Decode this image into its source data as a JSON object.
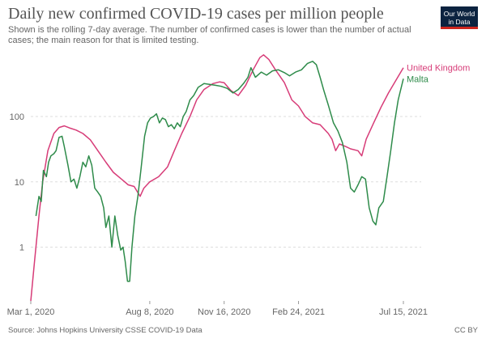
{
  "title": "Daily new confirmed COVID-19 cases per million people",
  "subtitle": "Shown is the rolling 7-day average. The number of confirmed cases is lower than the number of actual cases; the main reason for that is limited testing.",
  "logo": {
    "line1": "Our World",
    "line2": "in Data"
  },
  "footer": {
    "source": "Source: Johns Hopkins University CSSE COVID-19 Data",
    "license": "CC BY"
  },
  "colors": {
    "uk": "#d73c78",
    "malta": "#2e8b4a",
    "grid": "#dddddd",
    "logo_bg": "#0c2340",
    "logo_accent": "#ce261e"
  },
  "chart_data": {
    "type": "line",
    "y_scale": "log",
    "ylim": [
      0.15,
      1100
    ],
    "y_ticks": [
      {
        "value": 1,
        "label": "1"
      },
      {
        "value": 10,
        "label": "10"
      },
      {
        "value": 100,
        "label": "100"
      }
    ],
    "x_ticks": [
      {
        "value": "2020-03-01",
        "label": "Mar 1, 2020"
      },
      {
        "value": "2020-08-08",
        "label": "Aug 8, 2020"
      },
      {
        "value": "2020-11-16",
        "label": "Nov 16, 2020"
      },
      {
        "value": "2021-02-24",
        "label": "Feb 24, 2021"
      },
      {
        "value": "2021-07-15",
        "label": "Jul 15, 2021"
      }
    ],
    "xlim": [
      "2020-03-01",
      "2021-07-15"
    ],
    "series": [
      {
        "name": "United Kingdom",
        "color": "#d73c78",
        "points": [
          [
            "2020-03-01",
            0.15
          ],
          [
            "2020-03-06",
            0.6
          ],
          [
            "2020-03-12",
            3
          ],
          [
            "2020-03-17",
            10
          ],
          [
            "2020-03-24",
            30
          ],
          [
            "2020-04-01",
            55
          ],
          [
            "2020-04-08",
            68
          ],
          [
            "2020-04-15",
            72
          ],
          [
            "2020-04-22",
            67
          ],
          [
            "2020-05-01",
            62
          ],
          [
            "2020-05-10",
            55
          ],
          [
            "2020-05-20",
            44
          ],
          [
            "2020-06-01",
            28
          ],
          [
            "2020-06-10",
            20
          ],
          [
            "2020-06-20",
            14
          ],
          [
            "2020-07-01",
            11
          ],
          [
            "2020-07-10",
            9
          ],
          [
            "2020-07-18",
            8.5
          ],
          [
            "2020-07-26",
            6
          ],
          [
            "2020-07-31",
            8
          ],
          [
            "2020-08-08",
            10
          ],
          [
            "2020-08-20",
            12
          ],
          [
            "2020-09-01",
            17
          ],
          [
            "2020-09-10",
            30
          ],
          [
            "2020-09-20",
            55
          ],
          [
            "2020-10-01",
            100
          ],
          [
            "2020-10-10",
            180
          ],
          [
            "2020-10-20",
            260
          ],
          [
            "2020-11-01",
            320
          ],
          [
            "2020-11-10",
            340
          ],
          [
            "2020-11-16",
            330
          ],
          [
            "2020-11-25",
            250
          ],
          [
            "2020-12-05",
            210
          ],
          [
            "2020-12-15",
            300
          ],
          [
            "2020-12-25",
            520
          ],
          [
            "2021-01-03",
            800
          ],
          [
            "2021-01-08",
            880
          ],
          [
            "2021-01-15",
            750
          ],
          [
            "2021-01-24",
            520
          ],
          [
            "2021-02-05",
            330
          ],
          [
            "2021-02-15",
            180
          ],
          [
            "2021-02-24",
            145
          ],
          [
            "2021-03-05",
            100
          ],
          [
            "2021-03-15",
            80
          ],
          [
            "2021-03-25",
            75
          ],
          [
            "2021-04-05",
            55
          ],
          [
            "2021-04-10",
            45
          ],
          [
            "2021-04-15",
            30
          ],
          [
            "2021-04-20",
            38
          ],
          [
            "2021-04-28",
            35
          ],
          [
            "2021-05-05",
            32
          ],
          [
            "2021-05-15",
            30
          ],
          [
            "2021-05-20",
            25
          ],
          [
            "2021-05-26",
            45
          ],
          [
            "2021-06-05",
            80
          ],
          [
            "2021-06-15",
            140
          ],
          [
            "2021-06-25",
            230
          ],
          [
            "2021-07-05",
            360
          ],
          [
            "2021-07-15",
            560
          ]
        ]
      },
      {
        "name": "Malta",
        "color": "#2e8b4a",
        "points": [
          [
            "2020-03-08",
            3
          ],
          [
            "2020-03-12",
            6
          ],
          [
            "2020-03-15",
            5
          ],
          [
            "2020-03-18",
            15
          ],
          [
            "2020-03-22",
            12
          ],
          [
            "2020-03-25",
            20
          ],
          [
            "2020-03-28",
            25
          ],
          [
            "2020-04-01",
            27
          ],
          [
            "2020-04-04",
            30
          ],
          [
            "2020-04-08",
            48
          ],
          [
            "2020-04-12",
            50
          ],
          [
            "2020-04-15",
            35
          ],
          [
            "2020-04-20",
            18
          ],
          [
            "2020-04-24",
            10
          ],
          [
            "2020-04-28",
            11
          ],
          [
            "2020-05-02",
            8
          ],
          [
            "2020-05-06",
            12
          ],
          [
            "2020-05-10",
            20
          ],
          [
            "2020-05-14",
            17
          ],
          [
            "2020-05-18",
            25
          ],
          [
            "2020-05-22",
            18
          ],
          [
            "2020-05-26",
            8
          ],
          [
            "2020-05-30",
            7
          ],
          [
            "2020-06-03",
            6
          ],
          [
            "2020-06-07",
            4
          ],
          [
            "2020-06-10",
            2
          ],
          [
            "2020-06-14",
            3
          ],
          [
            "2020-06-18",
            1
          ],
          [
            "2020-06-22",
            3
          ],
          [
            "2020-06-26",
            1.5
          ],
          [
            "2020-06-30",
            0.9
          ],
          [
            "2020-07-03",
            1
          ],
          [
            "2020-07-06",
            0.6
          ],
          [
            "2020-07-09",
            0.3
          ],
          [
            "2020-07-12",
            0.3
          ],
          [
            "2020-07-15",
            1
          ],
          [
            "2020-07-19",
            3
          ],
          [
            "2020-07-23",
            6
          ],
          [
            "2020-07-27",
            15
          ],
          [
            "2020-08-01",
            50
          ],
          [
            "2020-08-05",
            80
          ],
          [
            "2020-08-09",
            95
          ],
          [
            "2020-08-13",
            100
          ],
          [
            "2020-08-17",
            110
          ],
          [
            "2020-08-21",
            80
          ],
          [
            "2020-08-25",
            95
          ],
          [
            "2020-08-29",
            90
          ],
          [
            "2020-09-02",
            70
          ],
          [
            "2020-09-06",
            75
          ],
          [
            "2020-09-10",
            65
          ],
          [
            "2020-09-14",
            80
          ],
          [
            "2020-09-18",
            70
          ],
          [
            "2020-09-22",
            100
          ],
          [
            "2020-09-26",
            120
          ],
          [
            "2020-10-01",
            180
          ],
          [
            "2020-10-06",
            210
          ],
          [
            "2020-10-12",
            280
          ],
          [
            "2020-10-20",
            320
          ],
          [
            "2020-10-28",
            310
          ],
          [
            "2020-11-05",
            300
          ],
          [
            "2020-11-12",
            290
          ],
          [
            "2020-11-20",
            270
          ],
          [
            "2020-11-28",
            230
          ],
          [
            "2020-12-05",
            260
          ],
          [
            "2020-12-12",
            320
          ],
          [
            "2020-12-18",
            400
          ],
          [
            "2020-12-22",
            560
          ],
          [
            "2020-12-28",
            400
          ],
          [
            "2021-01-05",
            480
          ],
          [
            "2021-01-12",
            430
          ],
          [
            "2021-01-20",
            500
          ],
          [
            "2021-01-28",
            520
          ],
          [
            "2021-02-05",
            470
          ],
          [
            "2021-02-12",
            420
          ],
          [
            "2021-02-20",
            480
          ],
          [
            "2021-02-28",
            520
          ],
          [
            "2021-03-08",
            650
          ],
          [
            "2021-03-15",
            700
          ],
          [
            "2021-03-20",
            620
          ],
          [
            "2021-03-25",
            400
          ],
          [
            "2021-03-30",
            250
          ],
          [
            "2021-04-05",
            150
          ],
          [
            "2021-04-12",
            80
          ],
          [
            "2021-04-18",
            60
          ],
          [
            "2021-04-24",
            40
          ],
          [
            "2021-04-30",
            20
          ],
          [
            "2021-05-05",
            8
          ],
          [
            "2021-05-10",
            7
          ],
          [
            "2021-05-15",
            9
          ],
          [
            "2021-05-20",
            12
          ],
          [
            "2021-05-25",
            11
          ],
          [
            "2021-05-30",
            4
          ],
          [
            "2021-06-04",
            2.5
          ],
          [
            "2021-06-08",
            2.2
          ],
          [
            "2021-06-12",
            4
          ],
          [
            "2021-06-18",
            5
          ],
          [
            "2021-06-23",
            12
          ],
          [
            "2021-06-28",
            30
          ],
          [
            "2021-07-03",
            80
          ],
          [
            "2021-07-08",
            180
          ],
          [
            "2021-07-15",
            380
          ]
        ]
      }
    ]
  }
}
